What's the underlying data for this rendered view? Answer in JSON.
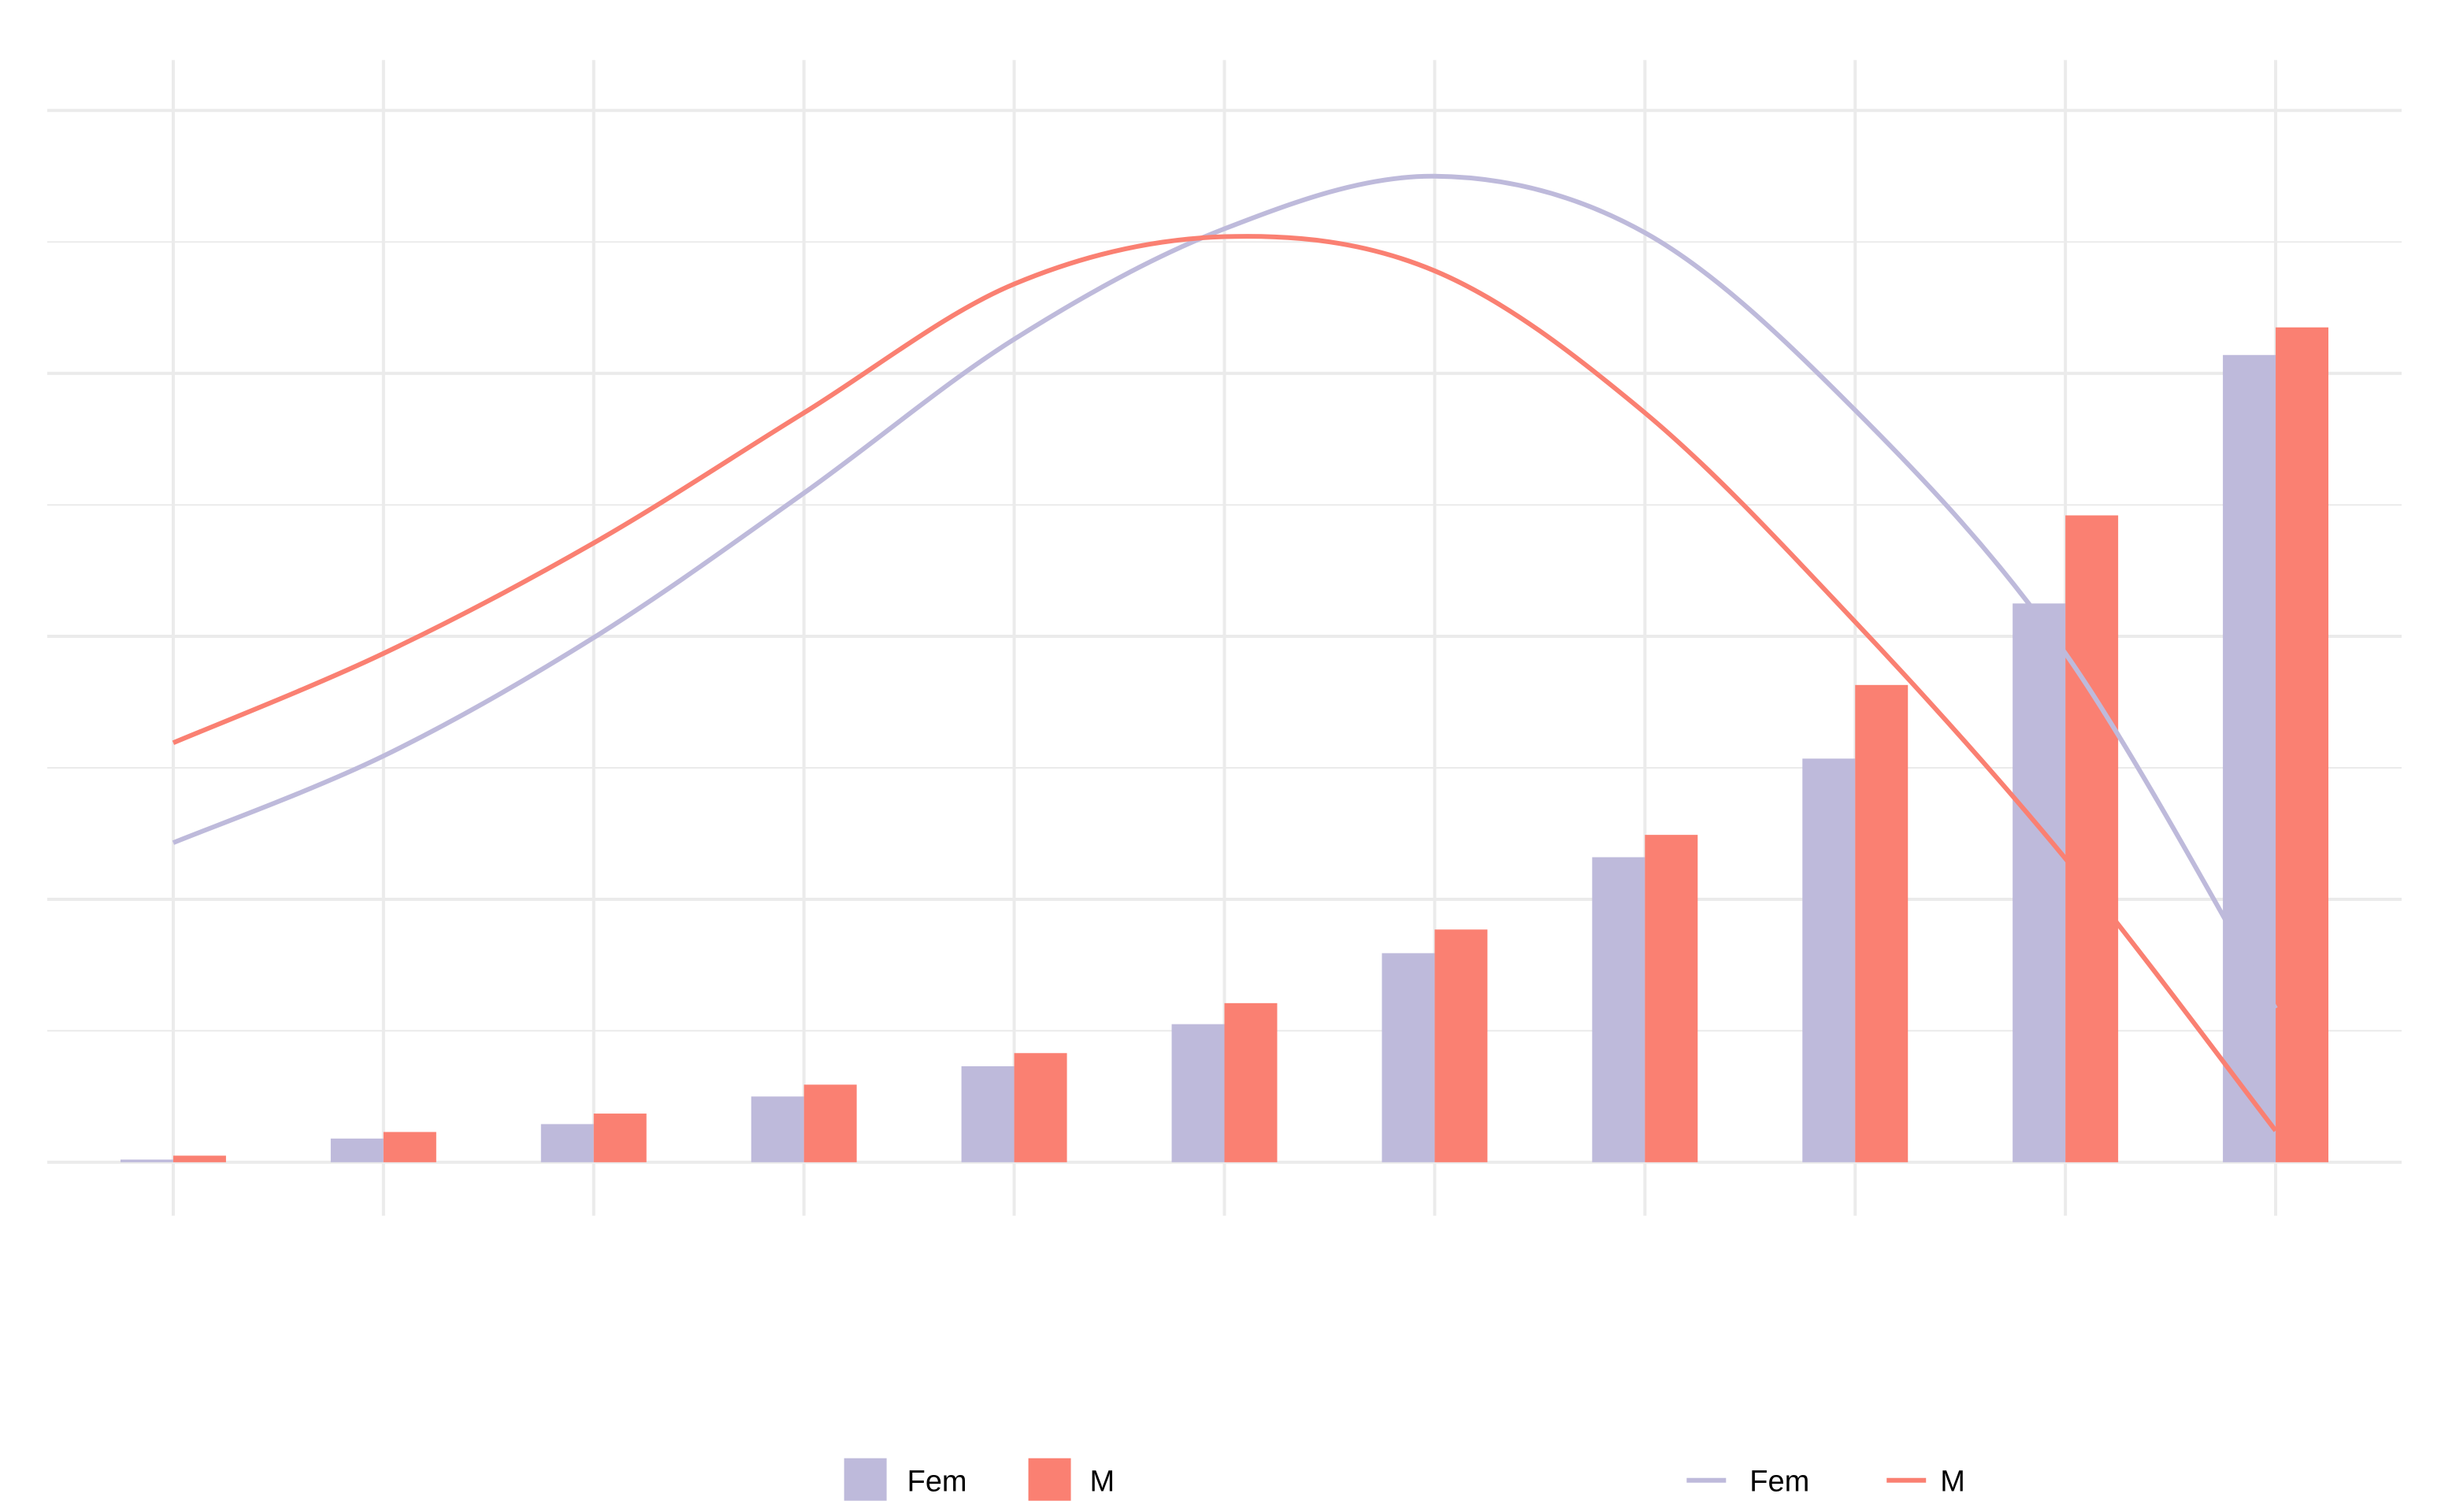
{
  "chart_data": {
    "type": "bar+line",
    "title": "",
    "xlabel": "",
    "ylabel": "",
    "ylim": [
      0,
      8
    ],
    "grid": true,
    "axis_tick_labels_shown": false,
    "legend_placement": "bottom",
    "colors": {
      "Fem": "#bebadb",
      "M": "#fa8072",
      "grid": "#ebebeb"
    },
    "bar_series": [
      {
        "name": "Fem",
        "values": [
          0.02,
          0.18,
          0.29,
          0.5,
          0.73,
          1.05,
          1.59,
          2.32,
          3.07,
          4.25,
          6.14
        ]
      },
      {
        "name": "M",
        "values": [
          0.05,
          0.23,
          0.37,
          0.59,
          0.83,
          1.21,
          1.77,
          2.49,
          3.63,
          4.92,
          6.35
        ]
      }
    ],
    "line_series": [
      {
        "name": "Fem",
        "values": [
          2.43,
          3.09,
          3.99,
          5.09,
          6.26,
          7.1,
          7.5,
          7.07,
          5.72,
          3.87,
          1.17
        ]
      },
      {
        "name": "M",
        "values": [
          3.19,
          3.87,
          4.71,
          5.7,
          6.68,
          7.04,
          6.78,
          5.7,
          4.11,
          2.31,
          0.24
        ]
      }
    ]
  },
  "legend": {
    "bars": [
      {
        "label": "Fem"
      },
      {
        "label": "M"
      }
    ],
    "lines": [
      {
        "label": "Fem"
      },
      {
        "label": "M"
      }
    ]
  }
}
